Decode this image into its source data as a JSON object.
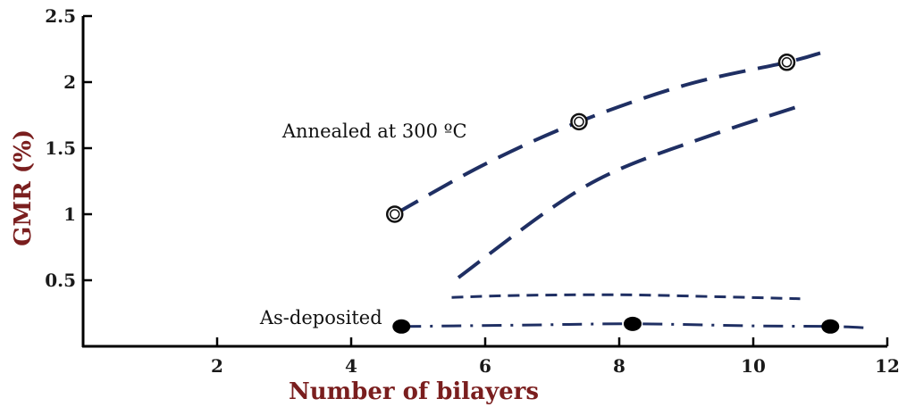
{
  "chart_data": {
    "type": "line",
    "title": "",
    "xlabel": "Number of bilayers",
    "ylabel": "GMR (%)",
    "xlim": [
      0,
      12
    ],
    "ylim": [
      0,
      2.5
    ],
    "xticks": [
      2,
      4,
      6,
      8,
      10,
      12
    ],
    "yticks": [
      0.5,
      1,
      1.5,
      2,
      2.5
    ],
    "x_tick_labels": [
      "2",
      "4",
      "6",
      "8",
      "10",
      "12"
    ],
    "y_tick_labels": [
      "0.5",
      "1",
      "1.5",
      "2",
      "2.5"
    ],
    "grid": false,
    "legend": "none",
    "series": [
      {
        "points": [
          {
            "x": 4.65,
            "y": 1.0
          },
          {
            "x": 7.4,
            "y": 1.7
          },
          {
            "x": 10.5,
            "y": 2.15
          }
        ],
        "curve": [
          [
            4.65,
            1.0
          ],
          [
            6.0,
            1.38
          ],
          [
            7.4,
            1.7
          ],
          [
            9.0,
            1.98
          ],
          [
            10.5,
            2.15
          ],
          [
            11.0,
            2.22
          ]
        ],
        "line_style": "long-dash",
        "marker": "open-circle",
        "color": "#1f2f63"
      },
      {
        "points": [],
        "curve": [
          [
            5.6,
            0.52
          ],
          [
            7.0,
            1.05
          ],
          [
            8.0,
            1.34
          ],
          [
            9.5,
            1.62
          ],
          [
            10.7,
            1.82
          ]
        ],
        "line_style": "long-dash",
        "marker": "none",
        "color": "#1f2f63"
      },
      {
        "points": [],
        "curve": [
          [
            5.5,
            0.37
          ],
          [
            6.5,
            0.385
          ],
          [
            8.0,
            0.39
          ],
          [
            9.5,
            0.375
          ],
          [
            10.7,
            0.36
          ]
        ],
        "line_style": "short-dash",
        "marker": "none",
        "color": "#1f2f63"
      },
      {
        "points": [
          {
            "x": 4.75,
            "y": 0.15
          },
          {
            "x": 8.2,
            "y": 0.17
          },
          {
            "x": 11.15,
            "y": 0.15
          }
        ],
        "curve": [
          [
            4.75,
            0.15
          ],
          [
            6.5,
            0.16
          ],
          [
            8.2,
            0.17
          ],
          [
            10.0,
            0.155
          ],
          [
            11.15,
            0.15
          ],
          [
            11.7,
            0.14
          ]
        ],
        "line_style": "dash-dot",
        "marker": "filled-circle",
        "color": "#1f2f63"
      }
    ],
    "annotations": [
      {
        "text": "Annealed at 300 ºC",
        "x": 4.35,
        "y": 1.58
      },
      {
        "text": "As-deposited",
        "x": 3.55,
        "y": 0.17
      }
    ]
  }
}
